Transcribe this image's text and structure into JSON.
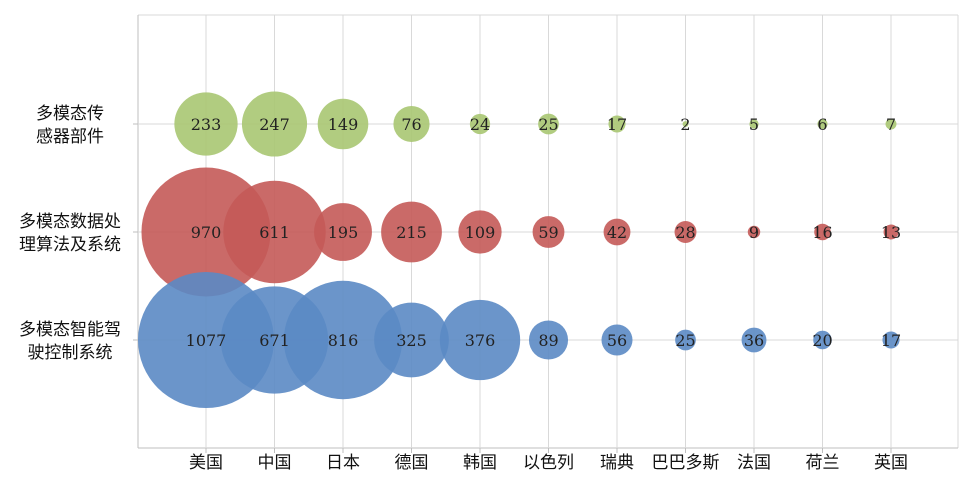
{
  "chart_data": {
    "type": "bubble",
    "x_categories": [
      "美国",
      "中国",
      "日本",
      "德国",
      "韩国",
      "以色列",
      "瑞典",
      "巴巴多斯",
      "法国",
      "荷兰",
      "英国"
    ],
    "y_categories": [
      {
        "lines": [
          "多模态传",
          "感器部件"
        ]
      },
      {
        "lines": [
          "多模态数据处",
          "理算法及系统"
        ]
      },
      {
        "lines": [
          "多模态智能驾",
          "驶控制系统"
        ]
      }
    ],
    "series": [
      {
        "color": "#a9c772",
        "values": [
          233,
          247,
          149,
          76,
          24,
          25,
          17,
          2,
          5,
          6,
          7
        ]
      },
      {
        "color": "#c45a58",
        "values": [
          970,
          611,
          195,
          215,
          109,
          59,
          42,
          28,
          9,
          16,
          13
        ]
      },
      {
        "color": "#5b8ac4",
        "values": [
          1077,
          671,
          816,
          325,
          376,
          89,
          56,
          25,
          36,
          20,
          17
        ]
      }
    ],
    "grid": true,
    "legend": "none"
  }
}
